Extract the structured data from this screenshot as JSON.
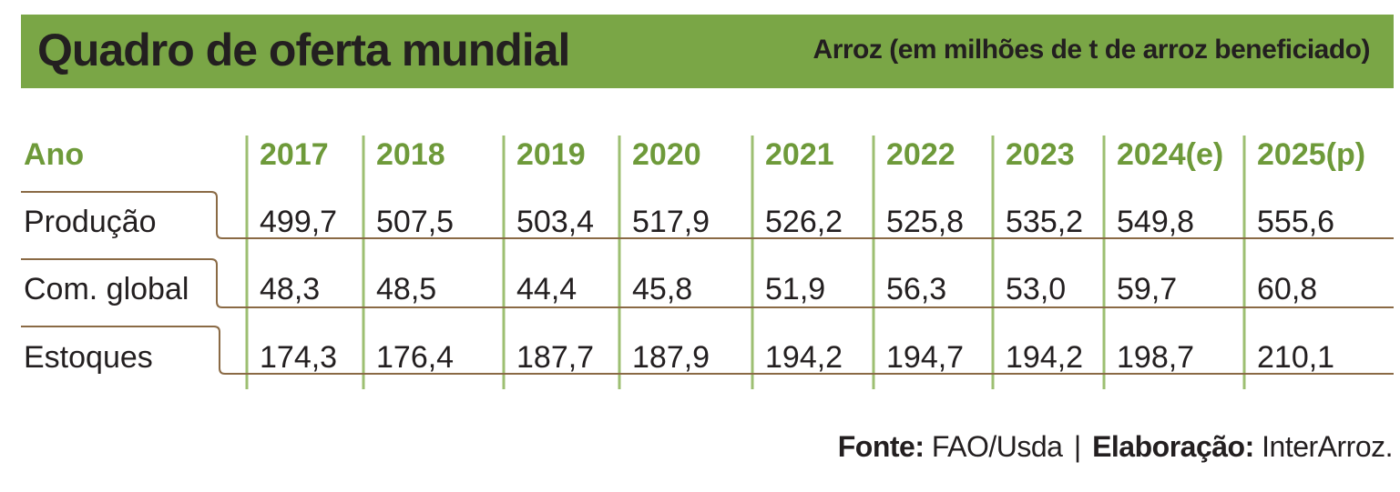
{
  "header": {
    "title": "Quadro de oferta mundial",
    "subtitle": "Arroz (em milhões de t de arroz beneficiado)"
  },
  "chart_data": {
    "type": "table",
    "title": "Quadro de oferta mundial",
    "subtitle": "Arroz (em milhões de t de arroz beneficiado)",
    "row_header_label": "Ano",
    "columns": [
      "2017",
      "2018",
      "2019",
      "2020",
      "2021",
      "2022",
      "2023",
      "2024(e)",
      "2025(p)"
    ],
    "rows": [
      {
        "label": "Produção",
        "values": [
          "499,7",
          "507,5",
          "503,4",
          "517,9",
          "526,2",
          "525,8",
          "535,2",
          "549,8",
          "555,6"
        ]
      },
      {
        "label": "Com. global",
        "values": [
          "48,3",
          "48,5",
          "44,4",
          "45,8",
          "51,9",
          "56,3",
          "53,0",
          "59,7",
          "60,8"
        ]
      },
      {
        "label": "Estoques",
        "values": [
          "174,3",
          "176,4",
          "187,7",
          "187,9",
          "194,2",
          "194,7",
          "194,2",
          "198,7",
          "210,1"
        ]
      }
    ]
  },
  "footer": {
    "source_label": "Fonte:",
    "source_value": "FAO/Usda",
    "separator": "|",
    "credit_label": "Elaboração:",
    "credit_value": "InterArroz."
  },
  "colors": {
    "accent_green": "#7aa646",
    "header_text_green": "#6e9a3a",
    "grid_line_green": "#9dbf72",
    "row_line_brown": "#8a6a45",
    "text_dark": "#231f20"
  }
}
